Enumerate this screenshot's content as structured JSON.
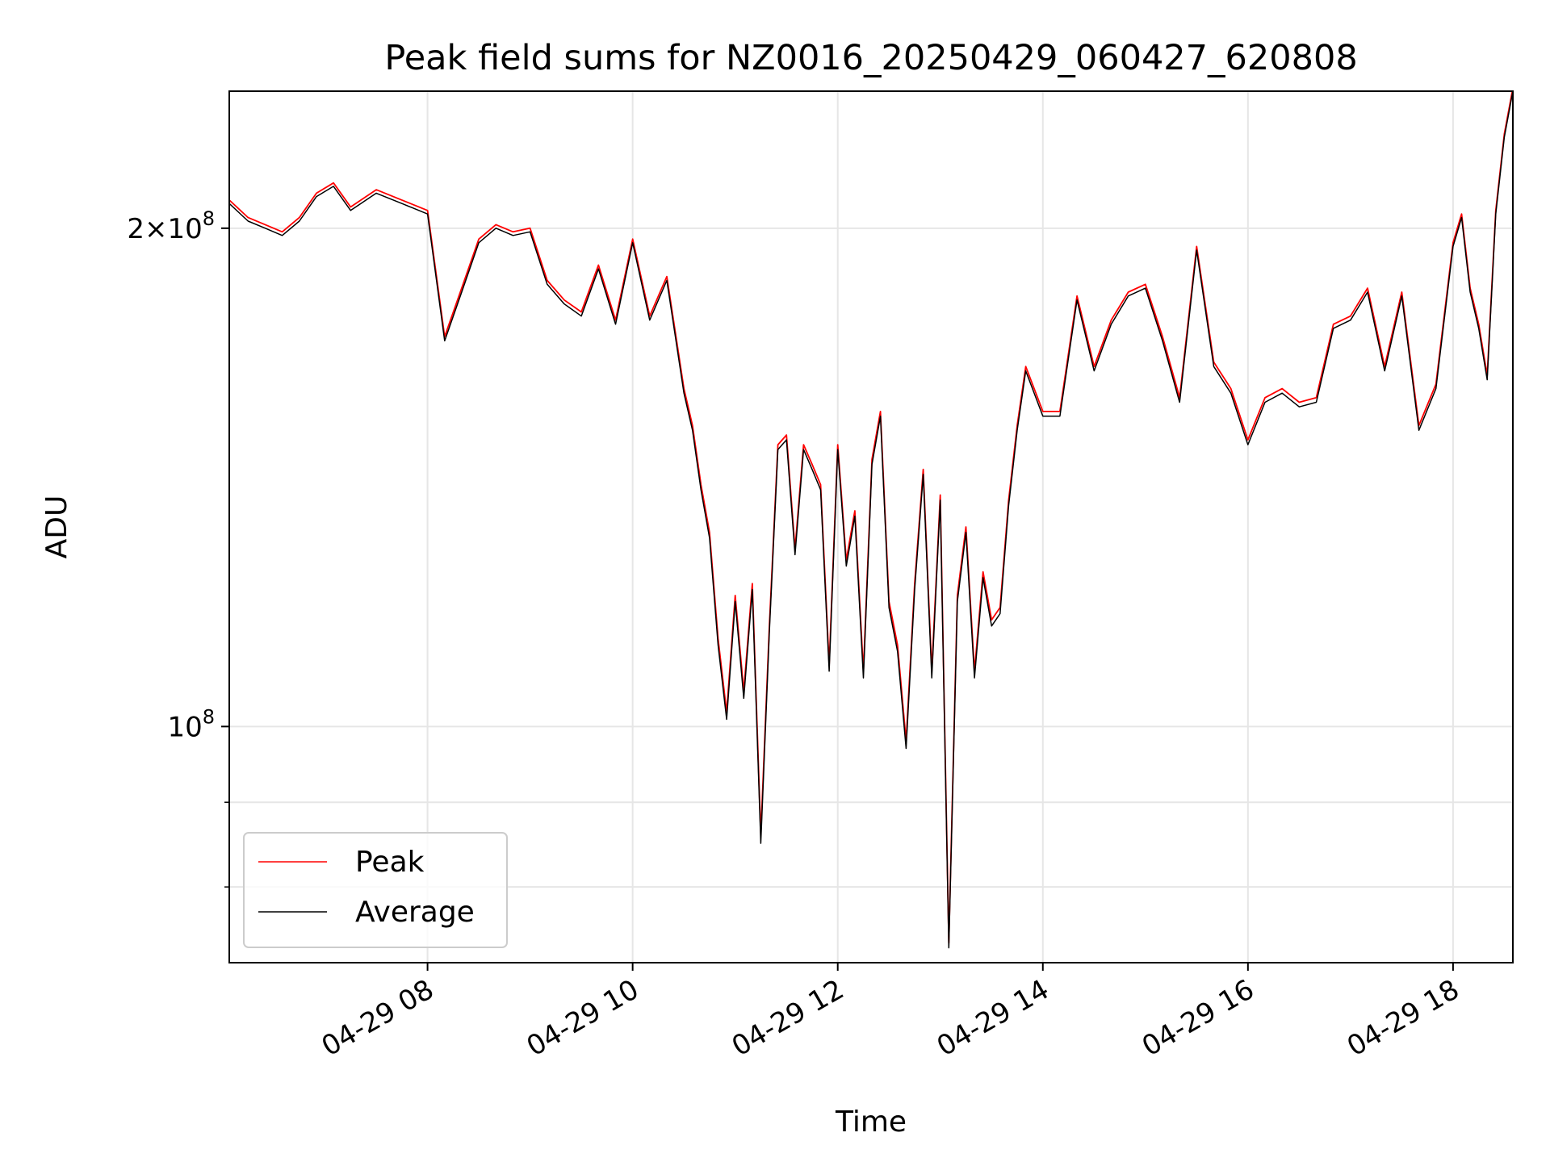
{
  "chart_data": {
    "type": "line",
    "title": "Peak field sums for NZ0016_20250429_060427_620808",
    "xlabel": "Time",
    "ylabel": "ADU",
    "yscale": "log",
    "xlim": [
      "2025-04-29 06:04",
      "2025-04-29 18:35"
    ],
    "ylim": [
      72000000,
      242000000
    ],
    "grid": true,
    "legend_position": "lower-left",
    "x_ticks": [
      "04-29 08",
      "04-29 10",
      "04-29 12",
      "04-29 14",
      "04-29 16",
      "04-29 18"
    ],
    "y_ticks_major": [
      {
        "value": 100000000,
        "mantissa": "",
        "exponent": "8"
      },
      {
        "value": 200000000,
        "mantissa": "2",
        "exponent": "8"
      }
    ],
    "y_ticks_minor": [
      80000000,
      90000000
    ],
    "x": [
      "2025-04-29 06:04",
      "2025-04-29 06:15",
      "2025-04-29 06:25",
      "2025-04-29 06:35",
      "2025-04-29 06:45",
      "2025-04-29 06:55",
      "2025-04-29 07:05",
      "2025-04-29 07:15",
      "2025-04-29 07:30",
      "2025-04-29 07:45",
      "2025-04-29 08:00",
      "2025-04-29 08:10",
      "2025-04-29 08:20",
      "2025-04-29 08:30",
      "2025-04-29 08:40",
      "2025-04-29 08:50",
      "2025-04-29 09:00",
      "2025-04-29 09:10",
      "2025-04-29 09:20",
      "2025-04-29 09:30",
      "2025-04-29 09:40",
      "2025-04-29 09:50",
      "2025-04-29 10:00",
      "2025-04-29 10:10",
      "2025-04-29 10:20",
      "2025-04-29 10:30",
      "2025-04-29 10:35",
      "2025-04-29 10:40",
      "2025-04-29 10:45",
      "2025-04-29 10:50",
      "2025-04-29 10:55",
      "2025-04-29 11:00",
      "2025-04-29 11:05",
      "2025-04-29 11:10",
      "2025-04-29 11:15",
      "2025-04-29 11:20",
      "2025-04-29 11:25",
      "2025-04-29 11:30",
      "2025-04-29 11:35",
      "2025-04-29 11:40",
      "2025-04-29 11:45",
      "2025-04-29 11:50",
      "2025-04-29 11:55",
      "2025-04-29 12:00",
      "2025-04-29 12:05",
      "2025-04-29 12:10",
      "2025-04-29 12:15",
      "2025-04-29 12:20",
      "2025-04-29 12:25",
      "2025-04-29 12:30",
      "2025-04-29 12:35",
      "2025-04-29 12:40",
      "2025-04-29 12:45",
      "2025-04-29 12:50",
      "2025-04-29 12:55",
      "2025-04-29 13:00",
      "2025-04-29 13:05",
      "2025-04-29 13:10",
      "2025-04-29 13:15",
      "2025-04-29 13:20",
      "2025-04-29 13:25",
      "2025-04-29 13:30",
      "2025-04-29 13:35",
      "2025-04-29 13:40",
      "2025-04-29 13:45",
      "2025-04-29 13:50",
      "2025-04-29 14:00",
      "2025-04-29 14:10",
      "2025-04-29 14:20",
      "2025-04-29 14:30",
      "2025-04-29 14:40",
      "2025-04-29 14:50",
      "2025-04-29 15:00",
      "2025-04-29 15:10",
      "2025-04-29 15:20",
      "2025-04-29 15:30",
      "2025-04-29 15:40",
      "2025-04-29 15:50",
      "2025-04-29 16:00",
      "2025-04-29 16:10",
      "2025-04-29 16:20",
      "2025-04-29 16:30",
      "2025-04-29 16:40",
      "2025-04-29 16:50",
      "2025-04-29 17:00",
      "2025-04-29 17:10",
      "2025-04-29 17:20",
      "2025-04-29 17:30",
      "2025-04-29 17:40",
      "2025-04-29 17:50",
      "2025-04-29 18:00",
      "2025-04-29 18:05",
      "2025-04-29 18:10",
      "2025-04-29 18:15",
      "2025-04-29 18:20",
      "2025-04-29 18:25",
      "2025-04-29 18:30",
      "2025-04-29 18:35"
    ],
    "series": [
      {
        "name": "Peak",
        "color": "#ff0000",
        "values": [
          208000000,
          203000000,
          201000000,
          199000000,
          203000000,
          210000000,
          213000000,
          206000000,
          211000000,
          208000000,
          205000000,
          172000000,
          184000000,
          197000000,
          201000000,
          199000000,
          200000000,
          186000000,
          181000000,
          178000000,
          190000000,
          176000000,
          197000000,
          177000000,
          187000000,
          160000000,
          152000000,
          140000000,
          131000000,
          113000000,
          102000000,
          120000000,
          105000000,
          122000000,
          86000000,
          115000000,
          148000000,
          150000000,
          128000000,
          148000000,
          144000000,
          140000000,
          109000000,
          148000000,
          126000000,
          135000000,
          108000000,
          145000000,
          155000000,
          119000000,
          112000000,
          98000000,
          122000000,
          143000000,
          108000000,
          138000000,
          74000000,
          120000000,
          132000000,
          108000000,
          124000000,
          116000000,
          118000000,
          137000000,
          152000000,
          165000000,
          155000000,
          155000000,
          182000000,
          165000000,
          176000000,
          183000000,
          185000000,
          172000000,
          158000000,
          195000000,
          166000000,
          160000000,
          149000000,
          158000000,
          160000000,
          157000000,
          158000000,
          175000000,
          177000000,
          184000000,
          165000000,
          183000000,
          152000000,
          161000000,
          196000000,
          204000000,
          184000000,
          175000000,
          163000000,
          205000000,
          228000000,
          243000000
        ]
      },
      {
        "name": "Average",
        "color": "#000000",
        "values": [
          207000000,
          202000000,
          200000000,
          198000000,
          202000000,
          209000000,
          212000000,
          205000000,
          210000000,
          207000000,
          204000000,
          171000000,
          183000000,
          196000000,
          200000000,
          198000000,
          199000000,
          185000000,
          180000000,
          177000000,
          189000000,
          175000000,
          196000000,
          176000000,
          186000000,
          159000000,
          151000000,
          139000000,
          130000000,
          112000000,
          101000000,
          119000000,
          104000000,
          121000000,
          85000000,
          114000000,
          147000000,
          149000000,
          127000000,
          147000000,
          143000000,
          139000000,
          108000000,
          147000000,
          125000000,
          134000000,
          107000000,
          144000000,
          154000000,
          118000000,
          111000000,
          97000000,
          121000000,
          142000000,
          107000000,
          137000000,
          73500000,
          119000000,
          131000000,
          107000000,
          123000000,
          115000000,
          117000000,
          136000000,
          151000000,
          164000000,
          154000000,
          154000000,
          181000000,
          164000000,
          175000000,
          182000000,
          184000000,
          171000000,
          157000000,
          194000000,
          165000000,
          159000000,
          148000000,
          157000000,
          159000000,
          156000000,
          157000000,
          174000000,
          176000000,
          183000000,
          164000000,
          182000000,
          151000000,
          160000000,
          195000000,
          203000000,
          183000000,
          174000000,
          162000000,
          204000000,
          227000000,
          242000000
        ]
      }
    ]
  }
}
